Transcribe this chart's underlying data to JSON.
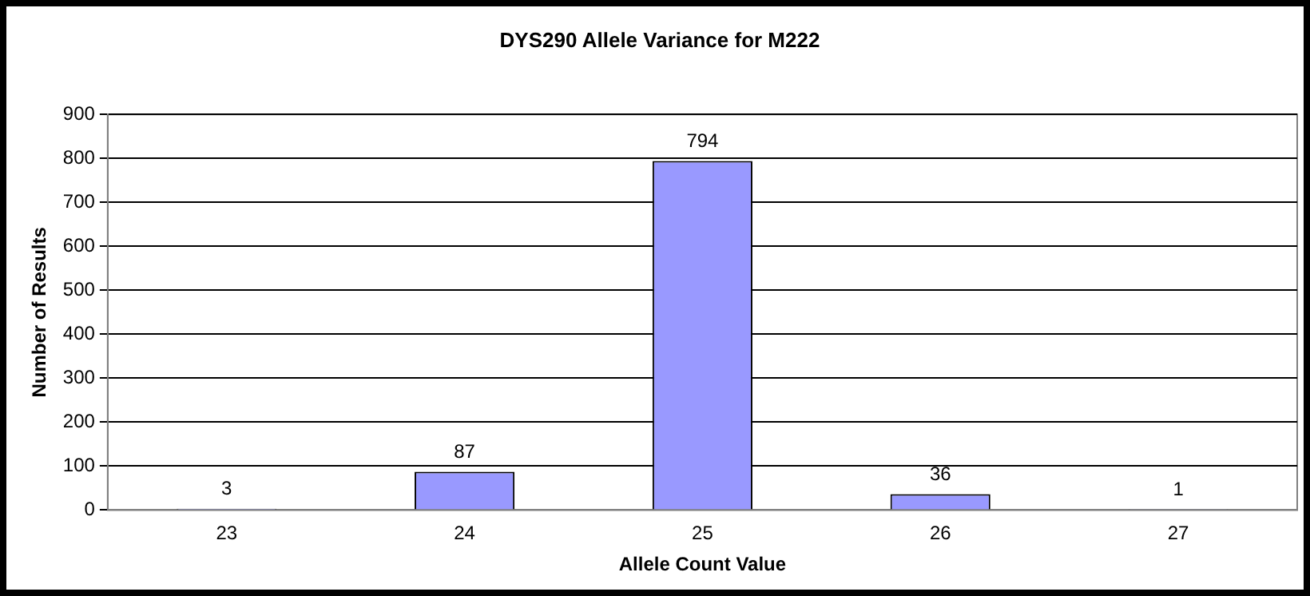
{
  "chart_data": {
    "type": "bar",
    "title": "DYS290 Allele Variance for M222",
    "xlabel": "Allele Count Value",
    "ylabel": "Number of Results",
    "categories": [
      "23",
      "24",
      "25",
      "26",
      "27"
    ],
    "values": [
      3,
      87,
      794,
      36,
      1
    ],
    "color": "#9999ff",
    "ylim": [
      0,
      900
    ],
    "yticks": [
      0,
      100,
      200,
      300,
      400,
      500,
      600,
      700,
      800,
      900
    ],
    "grid": "y",
    "legend": false,
    "data_labels": true
  }
}
